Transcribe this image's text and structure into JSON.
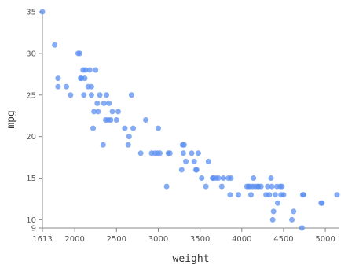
{
  "chart_data": {
    "type": "scatter",
    "title": "",
    "xlabel": "weight",
    "ylabel": "mpg",
    "xlim": [
      1613,
      5140
    ],
    "ylim": [
      9,
      35
    ],
    "xticks": [
      "1613",
      "2000",
      "2500",
      "3000",
      "3500",
      "4000",
      "4500",
      "5000"
    ],
    "xtick_values": [
      1613,
      2000,
      2500,
      3000,
      3500,
      4000,
      4500,
      5000
    ],
    "yticks": [
      "9",
      "10",
      "15",
      "20",
      "25",
      "30",
      "35"
    ],
    "ytick_values": [
      9,
      10,
      15,
      20,
      25,
      30,
      35
    ],
    "grid": false,
    "point_color": "#5b8ff0",
    "x": [
      1613,
      1760,
      1800,
      1800,
      1900,
      1950,
      2040,
      2060,
      2070,
      2080,
      2100,
      2110,
      2120,
      2130,
      2160,
      2180,
      2200,
      2200,
      2230,
      2220,
      2250,
      2270,
      2280,
      2300,
      2340,
      2350,
      2370,
      2380,
      2400,
      2410,
      2430,
      2450,
      2500,
      2520,
      2600,
      2640,
      2650,
      2680,
      2700,
      2790,
      2850,
      2920,
      2960,
      2990,
      3000,
      3020,
      3100,
      3120,
      3140,
      3280,
      3290,
      3300,
      3310,
      3330,
      3400,
      3430,
      3450,
      3460,
      3480,
      3520,
      3570,
      3600,
      3650,
      3660,
      3690,
      3720,
      3760,
      3780,
      3840,
      3860,
      3870,
      3960,
      4060,
      4080,
      4100,
      4110,
      4130,
      4140,
      4160,
      4190,
      4200,
      4230,
      4290,
      4310,
      4330,
      4350,
      4360,
      4370,
      4380,
      4400,
      4420,
      4430,
      4460,
      4470,
      4480,
      4500,
      4600,
      4620,
      4720,
      4730,
      4740,
      4950,
      4960,
      5140
    ],
    "y": [
      35,
      31,
      27,
      26,
      26,
      25,
      30,
      30,
      27,
      27,
      28,
      25,
      27,
      28,
      26,
      28,
      25,
      26,
      23,
      21,
      28,
      24,
      23,
      25,
      19,
      24,
      22,
      25,
      22,
      24,
      22,
      23,
      22,
      23,
      21,
      19,
      20,
      25,
      21,
      18,
      22,
      18,
      18,
      18,
      21,
      18,
      14,
      18,
      18,
      16,
      19,
      18,
      19,
      17,
      18,
      17,
      16,
      16,
      18,
      15,
      14,
      17,
      15,
      15,
      15,
      15,
      14,
      15,
      15,
      13,
      15,
      13,
      14,
      14,
      14,
      13,
      14,
      15,
      14,
      14,
      14,
      14,
      13,
      14,
      13,
      15,
      14,
      10,
      11,
      13,
      14,
      12,
      14,
      13,
      14,
      13,
      10,
      11,
      9,
      13,
      13,
      12,
      12,
      13
    ]
  }
}
